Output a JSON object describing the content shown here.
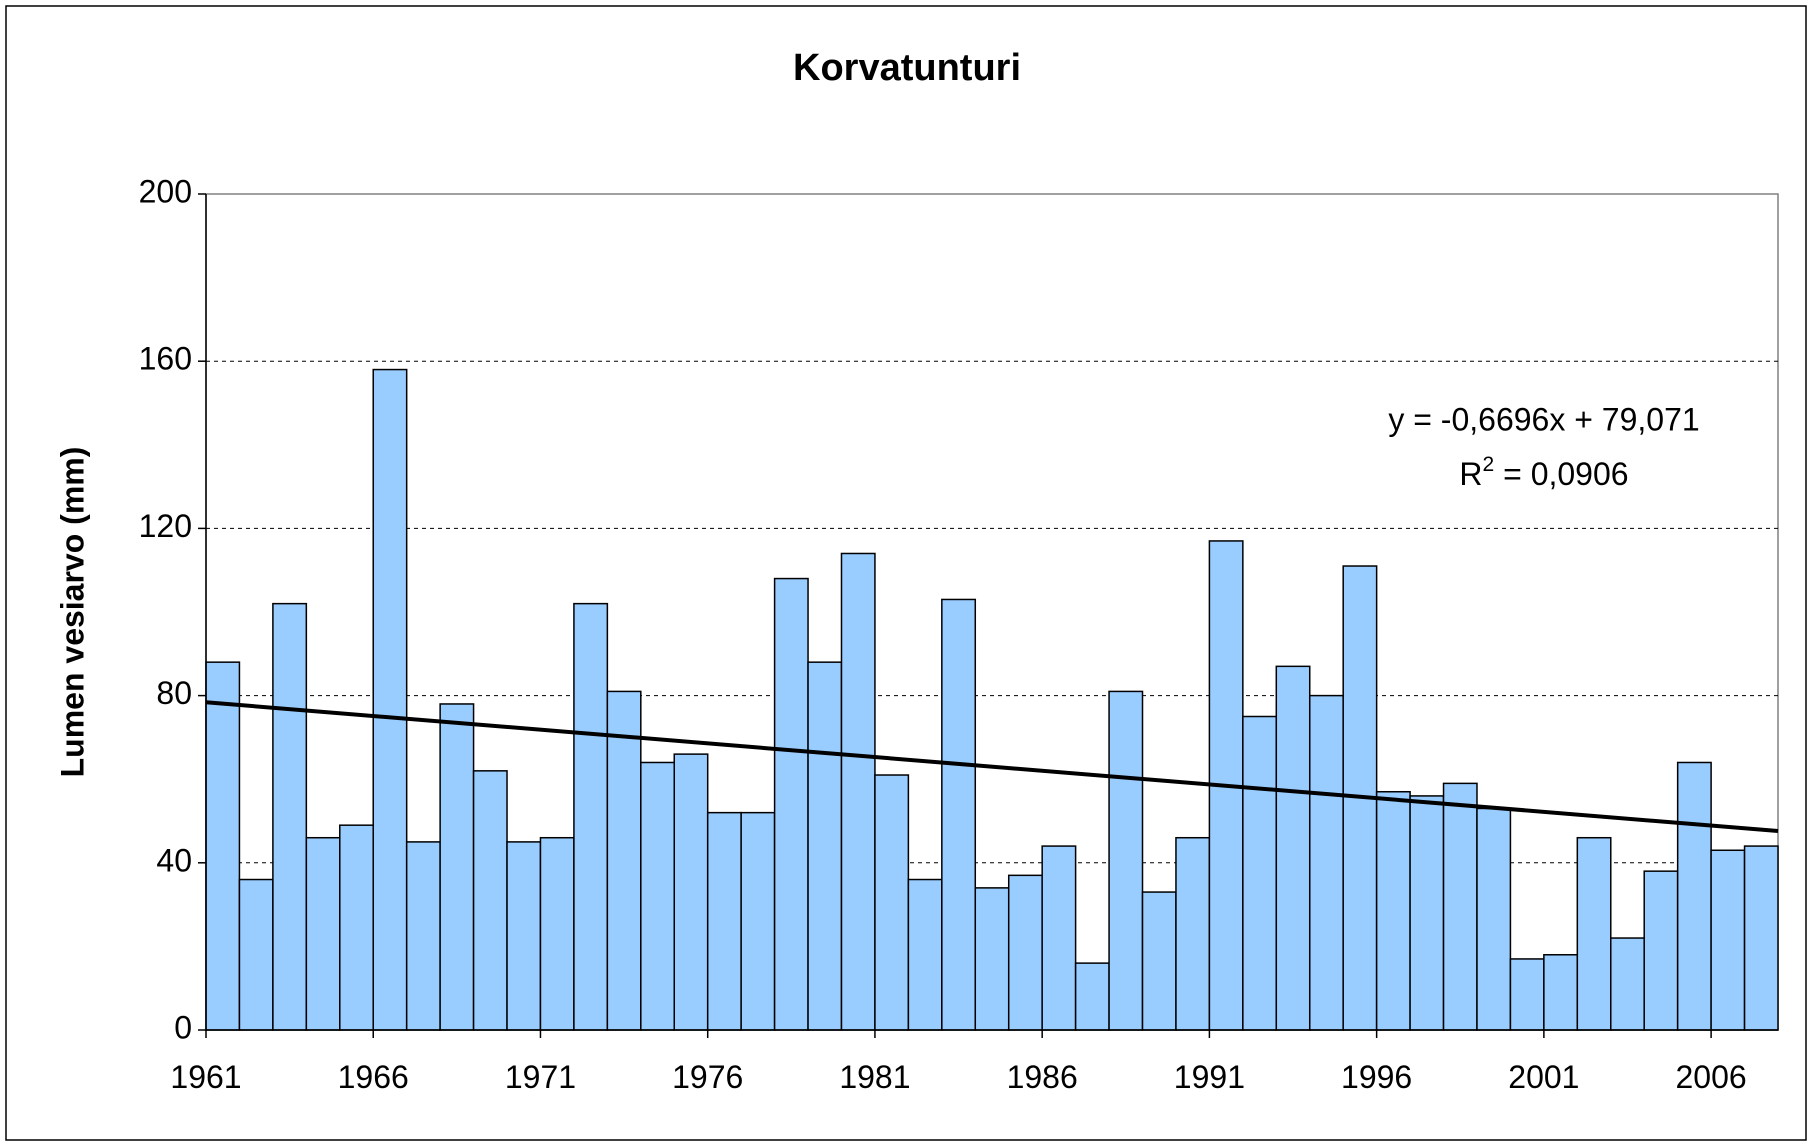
{
  "chart_data": {
    "type": "bar",
    "title": "Korvatunturi",
    "y_label": "Lumen vesiarvo (mm)",
    "categories": [
      "1961",
      null,
      null,
      null,
      null,
      "1966",
      null,
      null,
      null,
      null,
      "1971",
      null,
      null,
      null,
      null,
      "1976",
      null,
      null,
      null,
      null,
      "1981",
      null,
      null,
      null,
      null,
      "1986",
      null,
      null,
      null,
      null,
      "1991",
      null,
      null,
      null,
      null,
      "1996",
      null,
      null,
      null,
      null,
      "2001",
      null,
      null,
      null,
      null,
      "2006",
      null
    ],
    "values": [
      88,
      36,
      102,
      46,
      49,
      158,
      45,
      78,
      62,
      45,
      46,
      102,
      81,
      64,
      66,
      52,
      52,
      108,
      88,
      114,
      61,
      36,
      103,
      34,
      37,
      44,
      16,
      81,
      33,
      46,
      117,
      75,
      87,
      80,
      111,
      57,
      56,
      59,
      53,
      17,
      18,
      46,
      22,
      38,
      64,
      43,
      44
    ],
    "color": "#99ccff",
    "ylim": [
      0,
      200
    ],
    "yticks": [
      0,
      40,
      80,
      120,
      160,
      200
    ],
    "grid": true,
    "trendline": {
      "slope": -0.6696,
      "intercept": 79.071,
      "color": "#000000",
      "equation": "y = -0,6696x + 79,071",
      "r2_base": "R",
      "r2_sup": "2",
      "r2_rest": " = 0,0906"
    }
  }
}
